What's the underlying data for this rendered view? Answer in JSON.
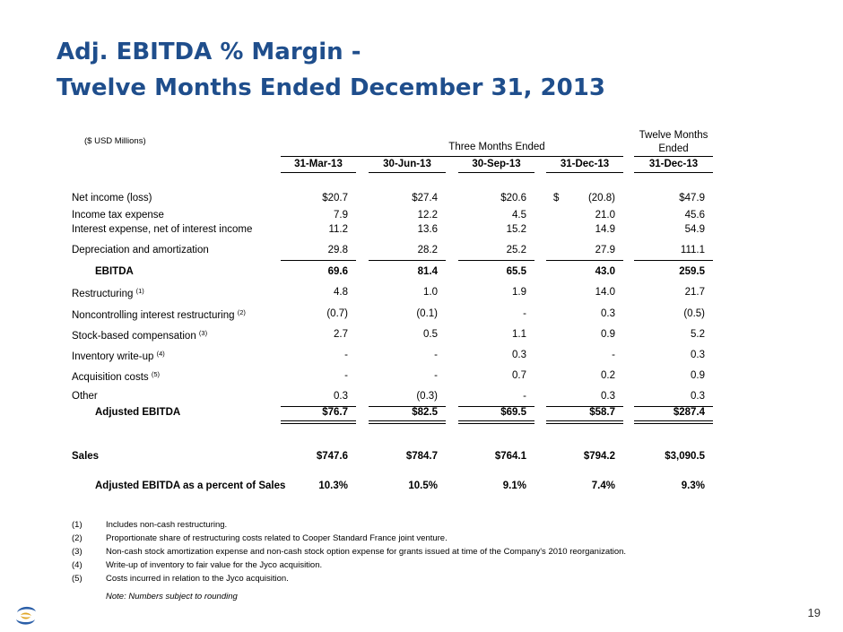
{
  "title": {
    "line1": "Adj. EBITDA % Margin -",
    "line2": "Twelve Months Ended December 31, 2013"
  },
  "units": "($ USD Millions)",
  "groups": {
    "three_months": "Three Months Ended",
    "twelve_months_line1": "Twelve Months",
    "twelve_months_line2": "Ended"
  },
  "columns": [
    "31-Mar-13",
    "30-Jun-13",
    "30-Sep-13",
    "31-Dec-13",
    "31-Dec-13"
  ],
  "rows": [
    {
      "label": "Net income (loss)",
      "sup": "",
      "values": [
        "$20.7",
        "$27.4",
        "$20.6",
        "(20.8)",
        "$47.9"
      ],
      "dollar": "$"
    },
    {
      "label": "Income tax expense",
      "sup": "",
      "values": [
        "7.9",
        "12.2",
        "4.5",
        "21.0",
        "45.6"
      ]
    },
    {
      "label": "Interest expense, net of interest income",
      "sup": "",
      "values": [
        "11.2",
        "13.6",
        "15.2",
        "14.9",
        "54.9"
      ]
    },
    {
      "label": "Depreciation and amortization",
      "sup": "",
      "values": [
        "29.8",
        "28.2",
        "25.2",
        "27.9",
        "111.1"
      ]
    },
    {
      "label": "EBITDA",
      "sup": "",
      "values": [
        "69.6",
        "81.4",
        "65.5",
        "43.0",
        "259.5"
      ]
    },
    {
      "label": "Restructuring",
      "sup": "(1)",
      "values": [
        "4.8",
        "1.0",
        "1.9",
        "14.0",
        "21.7"
      ]
    },
    {
      "label": "Noncontrolling interest restructuring",
      "sup": "(2)",
      "values": [
        "(0.7)",
        "(0.1)",
        "-",
        "0.3",
        "(0.5)"
      ]
    },
    {
      "label": "Stock-based compensation",
      "sup": "(3)",
      "values": [
        "2.7",
        "0.5",
        "1.1",
        "0.9",
        "5.2"
      ]
    },
    {
      "label": "Inventory write-up",
      "sup": "(4)",
      "values": [
        "-",
        "-",
        "0.3",
        "-",
        "0.3"
      ]
    },
    {
      "label": "Acquisition costs",
      "sup": "(5)",
      "values": [
        "-",
        "-",
        "0.7",
        "0.2",
        "0.9"
      ]
    },
    {
      "label": "Other",
      "sup": "",
      "values": [
        "0.3",
        "(0.3)",
        "-",
        "0.3",
        "0.3"
      ]
    },
    {
      "label": "Adjusted EBITDA",
      "sup": "",
      "values": [
        "$76.7",
        "$82.5",
        "$69.5",
        "$58.7",
        "$287.4"
      ]
    },
    {
      "label": "Sales",
      "sup": "",
      "values": [
        "$747.6",
        "$784.7",
        "$764.1",
        "$794.2",
        "$3,090.5"
      ]
    },
    {
      "label": "Adjusted EBITDA as a percent of Sales",
      "sup": "",
      "values": [
        "10.3%",
        "10.5%",
        "9.1%",
        "7.4%",
        "9.3%"
      ]
    }
  ],
  "footnotes": [
    {
      "num": "(1)",
      "text": "Includes non-cash restructuring."
    },
    {
      "num": "(2)",
      "text": "Proportionate share of restructuring costs related to Cooper Standard France joint venture."
    },
    {
      "num": "(3)",
      "text": "Non-cash stock amortization expense and non-cash stock option expense for grants issued at time of the Company's 2010 reorganization."
    },
    {
      "num": "(4)",
      "text": "Write-up of inventory to fair value for the Jyco acquisition."
    },
    {
      "num": "(5)",
      "text": "Costs incurred in relation to the Jyco acquisition."
    }
  ],
  "note": "Note: Numbers subject to rounding",
  "page_number": "19",
  "colors": {
    "title": "#1f4e8c",
    "logo_blue": "#2b5fa8",
    "logo_gold": "#e0a526"
  },
  "logo_icon": "company-logo-icon"
}
